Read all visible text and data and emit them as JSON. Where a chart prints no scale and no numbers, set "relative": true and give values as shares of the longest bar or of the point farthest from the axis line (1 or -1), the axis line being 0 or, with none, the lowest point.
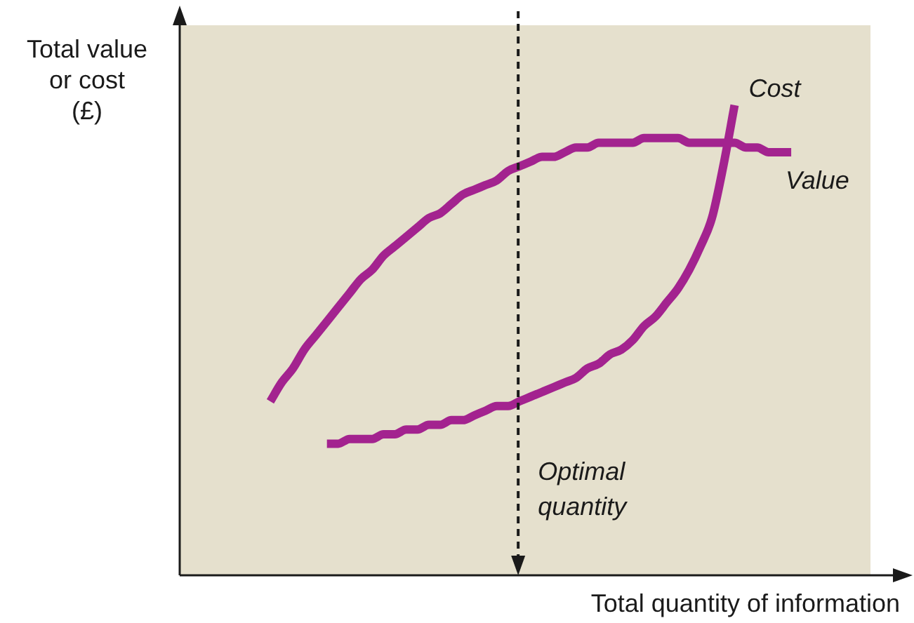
{
  "chart_data": {
    "type": "line",
    "relative": true,
    "xlabel": "Total quantity of information",
    "ylabel": "Total value\nor cost\n(£)",
    "categories": [
      null,
      null,
      null,
      null,
      null,
      null,
      null,
      null,
      null,
      null,
      null,
      null,
      null,
      null,
      null,
      null,
      null,
      null,
      null,
      null,
      null,
      null,
      null,
      null,
      null,
      null,
      null,
      null,
      null,
      null,
      null,
      null,
      null,
      null,
      null,
      null,
      null,
      null,
      null,
      null,
      null,
      null,
      null,
      null,
      null,
      null,
      null,
      null,
      null,
      null,
      null,
      null,
      null,
      null,
      null,
      null,
      null,
      null,
      null,
      null,
      null,
      null
    ],
    "series": [
      {
        "name": "Value",
        "color": "#a3238f",
        "values": [
          null,
          null,
          null,
          null,
          null,
          null,
          null,
          null,
          0.37,
          0.41,
          0.44,
          0.48,
          0.51,
          0.54,
          0.57,
          0.6,
          0.63,
          0.65,
          0.68,
          0.7,
          0.72,
          0.74,
          0.76,
          0.77,
          0.79,
          0.81,
          0.82,
          0.83,
          0.84,
          0.86,
          0.87,
          0.88,
          0.89,
          0.89,
          0.9,
          0.91,
          0.91,
          0.92,
          0.92,
          0.92,
          0.92,
          0.93,
          0.93,
          0.93,
          0.93,
          0.92,
          0.92,
          0.92,
          0.92,
          0.92,
          0.91,
          0.91,
          0.9,
          0.9,
          0.9,
          null,
          null,
          null,
          null,
          null,
          null,
          null
        ]
      },
      {
        "name": "Cost",
        "color": "#a3238f",
        "values": [
          null,
          null,
          null,
          null,
          null,
          null,
          null,
          null,
          null,
          null,
          null,
          null,
          null,
          0.28,
          0.28,
          0.29,
          0.29,
          0.29,
          0.3,
          0.3,
          0.31,
          0.31,
          0.32,
          0.32,
          0.33,
          0.33,
          0.34,
          0.35,
          0.36,
          0.36,
          0.37,
          0.38,
          0.39,
          0.4,
          0.41,
          0.42,
          0.44,
          0.45,
          0.47,
          0.48,
          0.5,
          0.53,
          0.55,
          0.58,
          0.61,
          0.65,
          0.7,
          0.76,
          0.87,
          1,
          null,
          null,
          null,
          null,
          null,
          null,
          null,
          null,
          null,
          null,
          null,
          null
        ]
      }
    ],
    "annotations": [
      "Optimal quantity"
    ],
    "legend": false,
    "line_style": "solid"
  }
}
